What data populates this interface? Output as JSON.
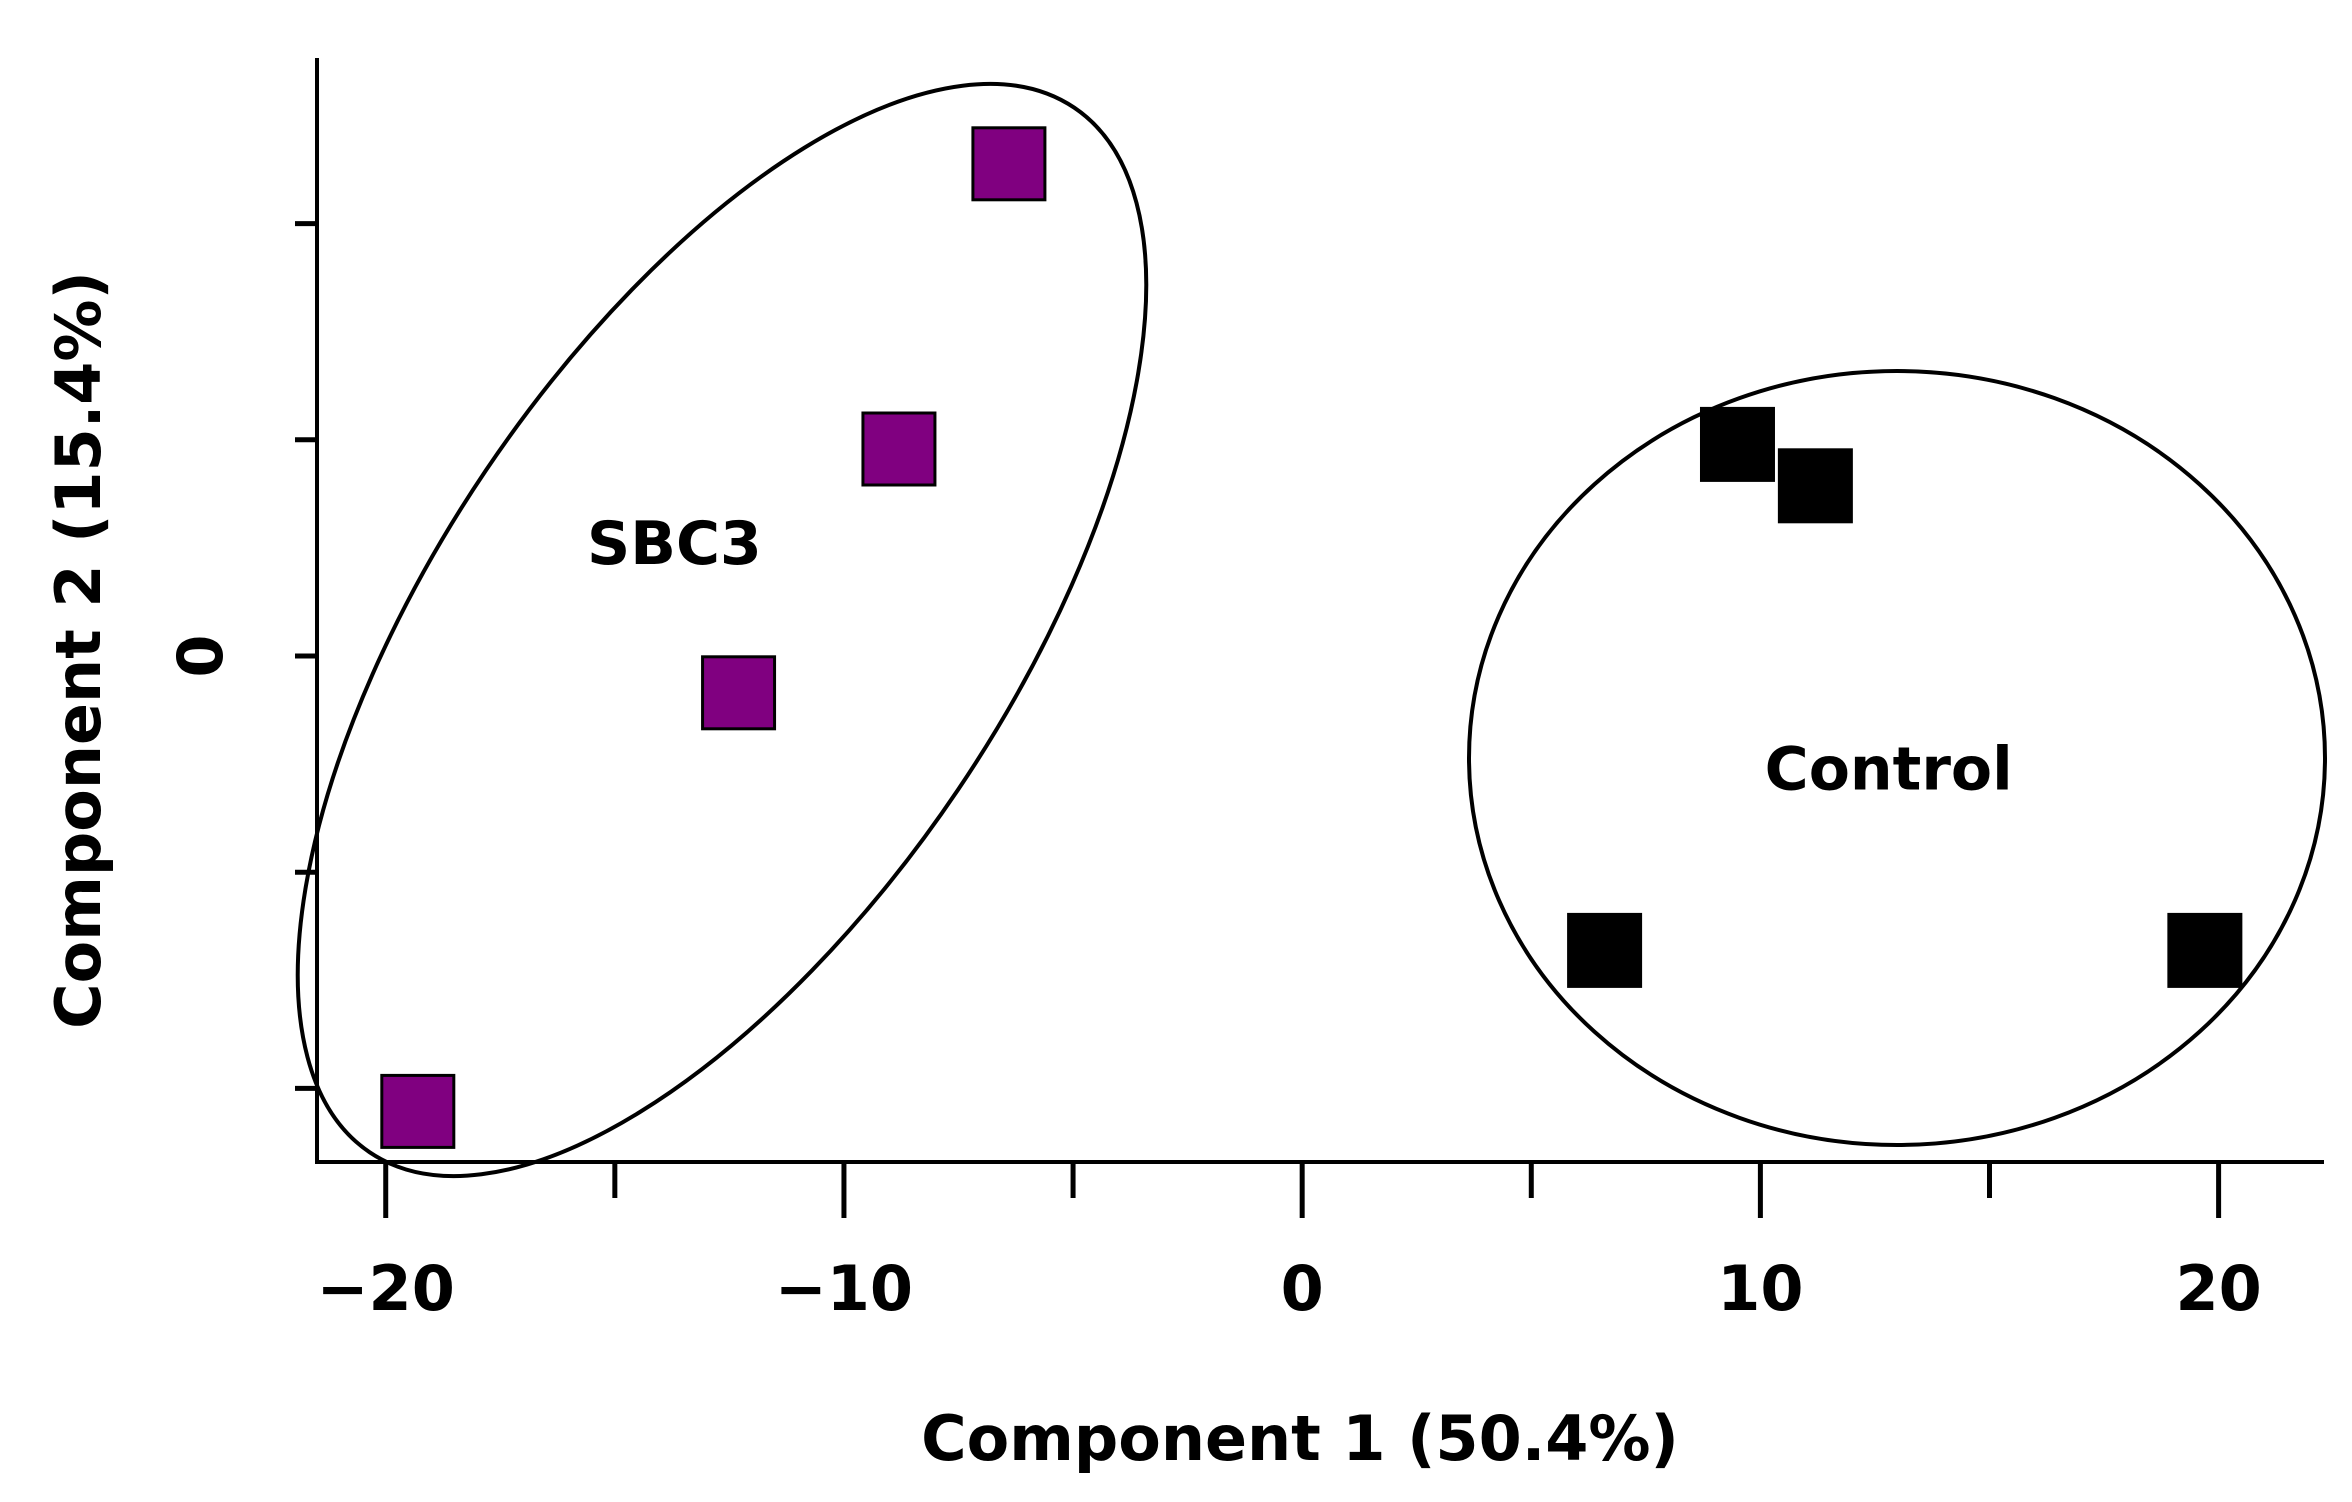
{
  "chart_data": {
    "type": "scatter",
    "title": "",
    "xlabel": "Component 1 (50.4%)",
    "ylabel": "Component 2 (15.4%)",
    "xlim": [
      -21.5,
      22.3
    ],
    "ylim": [
      -11,
      13
    ],
    "x_ticks": [
      -20,
      -15,
      -10,
      -5,
      0,
      5,
      10,
      15,
      20
    ],
    "x_tick_labels": [
      {
        "value": -20,
        "label": "−20"
      },
      {
        "value": -10,
        "label": "−10"
      },
      {
        "value": 0,
        "label": "0"
      },
      {
        "value": 10,
        "label": "10"
      },
      {
        "value": 20,
        "label": "20"
      }
    ],
    "y_ticks": [
      -9.4,
      -4.7,
      0,
      4.7,
      9.4
    ],
    "y_tick_labels": [
      {
        "value": 0,
        "label": "0"
      }
    ],
    "grid": false,
    "series": [
      {
        "name": "SBC3",
        "color": "#800080",
        "marker": "square",
        "points": [
          {
            "x": -6.4,
            "y": 10.7
          },
          {
            "x": -8.8,
            "y": 4.5
          },
          {
            "x": -12.3,
            "y": -0.8
          },
          {
            "x": -19.3,
            "y": -9.9
          }
        ]
      },
      {
        "name": "Control",
        "color": "#000000",
        "marker": "square",
        "points": [
          {
            "x": 9.5,
            "y": 4.6
          },
          {
            "x": 11.2,
            "y": 3.7
          },
          {
            "x": 6.6,
            "y": -6.4
          },
          {
            "x": 19.7,
            "y": -6.4
          }
        ]
      }
    ],
    "annotations": [
      {
        "text": "SBC3",
        "x": -13.7,
        "y": 2.0
      },
      {
        "text": "Control",
        "x": 12.8,
        "y": -2.9
      }
    ]
  }
}
